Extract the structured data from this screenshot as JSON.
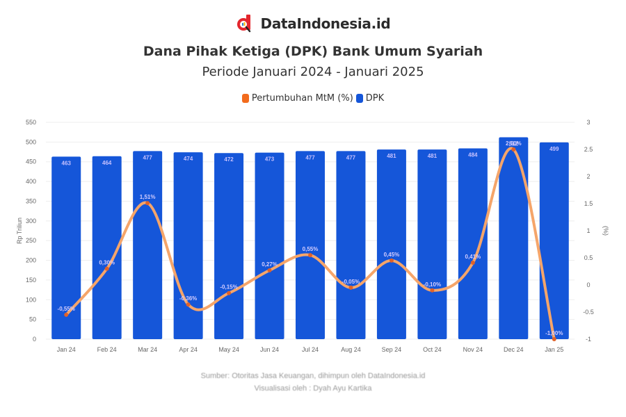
{
  "brand": {
    "name": "DataIndonesia.id",
    "logo_icon": "datainindonesia-logo-icon"
  },
  "header": {
    "title": "Dana Pihak Ketiga (DPK) Bank Umum Syariah",
    "subtitle": "Periode Januari 2024 - Januari 2025"
  },
  "legend": [
    {
      "label": "Pertumbuhan MtM (%)",
      "color": "#f26b1d"
    },
    {
      "label": "DPK",
      "color": "#1556d9"
    }
  ],
  "footer": {
    "source": "Sumber: Otoritas Jasa Keuangan, dihimpun oleh DataIndonesia.id",
    "credit": "Visualisasi oleh : Dyah Ayu Kartika"
  },
  "colors": {
    "bar": "#1556d9",
    "line": "#f5a56a",
    "line_marker": "#e0622a",
    "grid": "#eeeeee"
  },
  "chart_data": {
    "type": "bar",
    "title": "Dana Pihak Ketiga (DPK) Bank Umum Syariah",
    "subtitle": "Periode Januari 2024 - Januari 2025",
    "categories": [
      "Jan 24",
      "Feb 24",
      "Mar 24",
      "Apr 24",
      "May 24",
      "Jun 24",
      "Jul 24",
      "Aug 24",
      "Sep 24",
      "Oct 24",
      "Nov 24",
      "Dec 24",
      "Jan 25"
    ],
    "series": [
      {
        "name": "DPK",
        "type": "bar",
        "axis": "left",
        "values": [
          463,
          464,
          477,
          474,
          472,
          473,
          477,
          477,
          481,
          481,
          484,
          512,
          499
        ]
      },
      {
        "name": "Pertumbuhan MtM (%)",
        "type": "line",
        "axis": "right",
        "values": [
          -0.55,
          0.3,
          1.51,
          -0.36,
          -0.15,
          0.27,
          0.55,
          -0.05,
          0.45,
          -0.1,
          0.41,
          2.5,
          -1.0
        ]
      }
    ],
    "xlabel": "",
    "ylabel": "Rp Triliun",
    "y2label": "(%)",
    "ylim": [
      0,
      550
    ],
    "yticks": [
      0,
      50,
      100,
      150,
      200,
      250,
      300,
      350,
      400,
      450,
      500,
      550
    ],
    "y2lim": [
      -1,
      3
    ],
    "y2ticks": [
      -1,
      -0.5,
      0,
      0.5,
      1,
      1.5,
      2,
      2.5,
      3
    ],
    "grid": true,
    "legend_position": "top"
  }
}
